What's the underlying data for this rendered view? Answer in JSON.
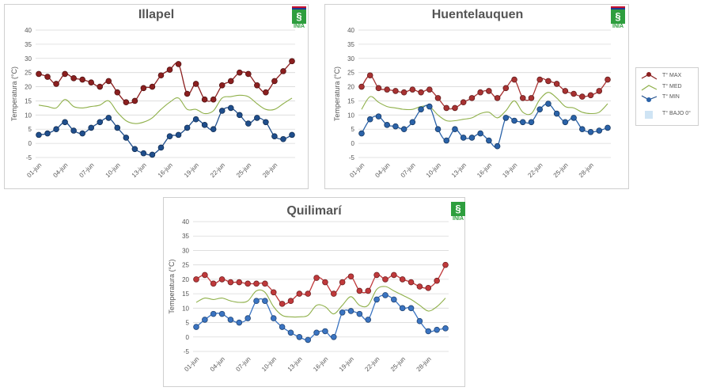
{
  "legend": {
    "items": [
      {
        "label": "T° MAX",
        "color": "#8b1f1f"
      },
      {
        "label": "T° MED",
        "color": "#8fb04a"
      },
      {
        "label": "T° MIN",
        "color": "#1f4e8c"
      },
      {
        "label": "T° BAJO 0°",
        "color": "#cfe4f4"
      }
    ]
  },
  "logo": {
    "text": "INIA"
  },
  "chart_data": [
    {
      "type": "line",
      "title": "Illapel",
      "ylabel": "Temperatura (°C)",
      "ylim": [
        -5,
        40
      ],
      "yticks": [
        -5,
        0,
        5,
        10,
        15,
        20,
        25,
        30,
        35,
        40
      ],
      "x": [
        "01-jun",
        "02-jun",
        "03-jun",
        "04-jun",
        "05-jun",
        "06-jun",
        "07-jun",
        "08-jun",
        "09-jun",
        "10-jun",
        "11-jun",
        "12-jun",
        "13-jun",
        "14-jun",
        "15-jun",
        "16-jun",
        "17-jun",
        "18-jun",
        "19-jun",
        "20-jun",
        "21-jun",
        "22-jun",
        "23-jun",
        "24-jun",
        "25-jun",
        "26-jun",
        "27-jun",
        "28-jun",
        "29-jun",
        "30-jun"
      ],
      "xtick_labels": [
        "01-jun",
        "04-jun",
        "07-jun",
        "10-jun",
        "13-jun",
        "16-jun",
        "19-jun",
        "22-jun",
        "25-jun",
        "28-jun"
      ],
      "grid": true,
      "series": [
        {
          "name": "T° MAX",
          "color": "#8b1f1f",
          "marker": true,
          "values": [
            24.5,
            23.5,
            21,
            24.5,
            23,
            22.5,
            21.5,
            20,
            22,
            18,
            14.5,
            15,
            19.5,
            20,
            24,
            26,
            28,
            17.5,
            21,
            15.5,
            15.5,
            20.5,
            22,
            25,
            24.5,
            20.5,
            18,
            22,
            25.5,
            29
          ]
        },
        {
          "name": "T° MED",
          "color": "#8fb04a",
          "marker": false,
          "values": [
            13.5,
            13,
            12.5,
            15.5,
            13,
            12.5,
            13,
            13.5,
            15,
            11,
            8,
            7,
            7.5,
            9,
            12,
            14.5,
            16,
            12,
            12,
            10.5,
            11.5,
            16,
            16.5,
            17,
            16.5,
            14,
            12,
            12,
            14,
            16
          ]
        },
        {
          "name": "T° MIN",
          "color": "#1f4e8c",
          "marker": true,
          "values": [
            3,
            3.5,
            5,
            7.5,
            4.5,
            3.5,
            5.5,
            7.5,
            9,
            5.5,
            2,
            -2,
            -3.5,
            -4,
            -1.5,
            2.5,
            3,
            5.5,
            8.5,
            6.5,
            5,
            11.5,
            12.5,
            10,
            7,
            9,
            7.5,
            2.5,
            1.5,
            3
          ]
        }
      ]
    },
    {
      "type": "line",
      "title": "Huentelauquen",
      "ylabel": "Temperatura (°C)",
      "ylim": [
        -5,
        40
      ],
      "yticks": [
        -5,
        0,
        5,
        10,
        15,
        20,
        25,
        30,
        35,
        40
      ],
      "x": [
        "01-jun",
        "02-jun",
        "03-jun",
        "04-jun",
        "05-jun",
        "06-jun",
        "07-jun",
        "08-jun",
        "09-jun",
        "10-jun",
        "11-jun",
        "12-jun",
        "13-jun",
        "14-jun",
        "15-jun",
        "16-jun",
        "17-jun",
        "18-jun",
        "19-jun",
        "20-jun",
        "21-jun",
        "22-jun",
        "23-jun",
        "24-jun",
        "25-jun",
        "26-jun",
        "27-jun",
        "28-jun",
        "29-jun",
        "30-jun"
      ],
      "xtick_labels": [
        "01-jun",
        "04-jun",
        "07-jun",
        "10-jun",
        "13-jun",
        "16-jun",
        "19-jun",
        "22-jun",
        "25-jun",
        "28-jun"
      ],
      "grid": true,
      "series": [
        {
          "name": "T° MAX",
          "color": "#a83232",
          "marker": true,
          "values": [
            20,
            24,
            19.5,
            19,
            18.5,
            18,
            19,
            18,
            19,
            16,
            12.5,
            12.5,
            14.5,
            16,
            18,
            18.5,
            16,
            19.5,
            22.5,
            16,
            16,
            22.5,
            22,
            21,
            18.5,
            17.5,
            16.5,
            17,
            18.5,
            22.5
          ]
        },
        {
          "name": "T° MED",
          "color": "#8fb04a",
          "marker": false,
          "values": [
            12,
            16.5,
            14.5,
            13,
            12.5,
            12,
            12,
            13,
            13,
            10,
            8,
            8,
            8.5,
            9,
            10.5,
            11,
            9,
            11.5,
            15,
            11,
            10.5,
            15.5,
            18,
            16,
            13,
            12.5,
            11,
            10.5,
            11,
            14
          ]
        },
        {
          "name": "T° MIN",
          "color": "#2a62a8",
          "marker": true,
          "values": [
            3.5,
            8.5,
            9.5,
            6.5,
            6,
            5,
            7.5,
            12,
            13,
            5,
            1,
            5,
            2,
            2,
            3.5,
            1,
            -1,
            9,
            8,
            7.5,
            7.5,
            12,
            14,
            10.5,
            7.5,
            9,
            5,
            4,
            4.5,
            5.5
          ]
        }
      ]
    },
    {
      "type": "line",
      "title": "Quilimarí",
      "ylabel": "Temperatura (°C)",
      "ylim": [
        -5,
        40
      ],
      "yticks": [
        -5,
        0,
        5,
        10,
        15,
        20,
        25,
        30,
        35,
        40
      ],
      "x": [
        "01-jun",
        "02-jun",
        "03-jun",
        "04-jun",
        "05-jun",
        "06-jun",
        "07-jun",
        "08-jun",
        "09-jun",
        "10-jun",
        "11-jun",
        "12-jun",
        "13-jun",
        "14-jun",
        "15-jun",
        "16-jun",
        "17-jun",
        "18-jun",
        "19-jun",
        "20-jun",
        "21-jun",
        "22-jun",
        "23-jun",
        "24-jun",
        "25-jun",
        "26-jun",
        "27-jun",
        "28-jun",
        "29-jun",
        "30-jun"
      ],
      "xtick_labels": [
        "01-jun",
        "04-jun",
        "07-jun",
        "10-jun",
        "13-jun",
        "16-jun",
        "19-jun",
        "22-jun",
        "25-jun",
        "28-jun"
      ],
      "grid": true,
      "series": [
        {
          "name": "T° MAX",
          "color": "#c0393b",
          "marker": true,
          "values": [
            20,
            21.5,
            18.5,
            20,
            19,
            19,
            18.5,
            18.5,
            18.5,
            15.5,
            11.5,
            12.5,
            15,
            15,
            20.5,
            19,
            15,
            19,
            21,
            16,
            16,
            21.5,
            20,
            21.5,
            20,
            19,
            17.5,
            17,
            19.5,
            25
          ]
        },
        {
          "name": "T° MED",
          "color": "#8fb04a",
          "marker": false,
          "values": [
            12,
            13.5,
            13,
            13.5,
            12.5,
            12,
            12.5,
            16,
            15.5,
            10.5,
            7.5,
            7,
            7,
            7.5,
            11,
            10.5,
            8,
            11,
            14,
            11,
            11,
            16.5,
            17.5,
            16,
            14.5,
            13,
            11,
            9,
            10.5,
            13.5
          ]
        },
        {
          "name": "T° MIN",
          "color": "#3a74c2",
          "marker": true,
          "values": [
            3.5,
            6,
            8,
            8,
            6,
            5,
            6.5,
            12.5,
            12.5,
            6.5,
            3.5,
            1.5,
            0,
            -1,
            1.5,
            2,
            0,
            8.5,
            9,
            8,
            6,
            13,
            14.5,
            13,
            10,
            10,
            5.5,
            2,
            2.5,
            3
          ]
        }
      ]
    }
  ]
}
